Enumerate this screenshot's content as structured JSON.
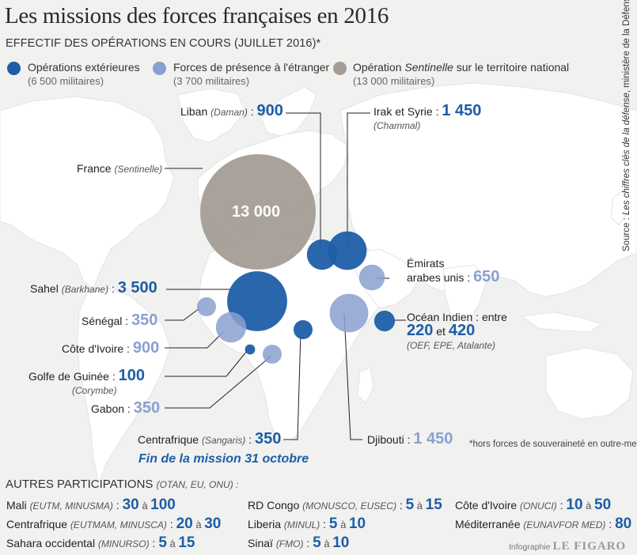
{
  "title": "Les missions des forces françaises en 2016",
  "subtitle": "EFFECTIF DES OPÉRATIONS EN COURS (JUILLET 2016)*",
  "colors": {
    "opex": "#1d5ea6",
    "presence": "#8aa0cf",
    "sentinelle": "#a39d96",
    "land": "#ffffff",
    "sea": "#f1f1f0",
    "leader": "#222222"
  },
  "legend": [
    {
      "label": "Opérations extérieures",
      "sub": "(6 500 militaires)",
      "color": "#1d5ea6"
    },
    {
      "label": "Forces de présence à l'étranger",
      "sub": "(3 700 militaires)",
      "color": "#8aa0cf"
    },
    {
      "label_pre": "Opération ",
      "label_it": "Sentinelle",
      "label_post": " sur le territoire national",
      "sub": "(13 000 militaires)",
      "color": "#a39d96"
    }
  ],
  "circles": [
    {
      "id": "france",
      "category": "sentinelle",
      "value": 13000,
      "value_label": "13 000"
    },
    {
      "id": "sahel",
      "category": "opex",
      "value": 3500
    },
    {
      "id": "irak",
      "category": "opex",
      "value": 1450
    },
    {
      "id": "liban",
      "category": "opex",
      "value": 900
    },
    {
      "id": "centrafrique",
      "category": "opex",
      "value": 350
    },
    {
      "id": "ocean-indien",
      "category": "opex",
      "value": 420
    },
    {
      "id": "guinee",
      "category": "opex",
      "value": 100
    },
    {
      "id": "djibouti",
      "category": "presence",
      "value": 1450
    },
    {
      "id": "cote-ivoire",
      "category": "presence",
      "value": 900
    },
    {
      "id": "emirats",
      "category": "presence",
      "value": 650
    },
    {
      "id": "senegal",
      "category": "presence",
      "value": 350
    },
    {
      "id": "gabon",
      "category": "presence",
      "value": 350
    }
  ],
  "labels": {
    "liban": {
      "name": "Liban",
      "sub": "(Daman)",
      "sep": " : ",
      "value": "900"
    },
    "irak": {
      "name": "Irak et Syrie : ",
      "value": "1 450",
      "sub": "(Chammal)"
    },
    "france": {
      "name": "France",
      "sub": "(Sentinelle)"
    },
    "emirats": {
      "name_1": "Émirats",
      "name_2": "arabes unis : ",
      "value": "650"
    },
    "sahel": {
      "name": "Sahel",
      "sub": "(Barkhane)",
      "sep": " : ",
      "value": "3 500"
    },
    "ocean": {
      "name": "Océan Indien : entre",
      "v1": "220",
      "et": " et ",
      "v2": "420",
      "sub": "(OEF, EPE, Atalante)"
    },
    "senegal": {
      "name": "Sénégal : ",
      "value": "350"
    },
    "cote_ivoire": {
      "name": "Côte d'Ivoire : ",
      "value": "900"
    },
    "guinee": {
      "name": "Golfe de Guinée : ",
      "value": "100",
      "sub": "(Corymbe)"
    },
    "gabon": {
      "name": "Gabon : ",
      "value": "350"
    },
    "centrafrique": {
      "name": "Centrafrique",
      "sub": "(Sangaris)",
      "sep": " : ",
      "value": "350"
    },
    "djibouti": {
      "name": "Djibouti : ",
      "value": "1 450"
    }
  },
  "fin_mission": "Fin de la mission 31 octobre",
  "note": "*hors forces de souveraineté en outre-mer",
  "source": {
    "pre": "Source : ",
    "it": "Les chiffres clés de la défense",
    "post": ", ministère de la Défense"
  },
  "autres": {
    "title": "AUTRES PARTICIPATIONS",
    "title_sub": "(OTAN, EU, ONU) :",
    "items": [
      {
        "name": "Mali",
        "sub": "(EUTM, MINUSMA)",
        "sep": " : ",
        "v1": "30",
        "a": " à ",
        "v2": "100"
      },
      {
        "name": "Centrafrique",
        "sub": "(EUTMAM, MINUSCA)",
        "sep": " : ",
        "v1": "20",
        "a": " à ",
        "v2": "30"
      },
      {
        "name": "Sahara occidental",
        "sub": "(MINURSO)",
        "sep": " : ",
        "v1": "5",
        "a": " à ",
        "v2": "15"
      },
      {
        "name": "RD Congo",
        "sub": "(MONUSCO, EUSEC)",
        "sep": " : ",
        "v1": "5",
        "a": " à ",
        "v2": "15"
      },
      {
        "name": "Liberia",
        "sub": "(MINUL)",
        "sep": " : ",
        "v1": "5",
        "a": " à ",
        "v2": "10"
      },
      {
        "name": "Sinaï",
        "sub": "(FMO)",
        "sep": " : ",
        "v1": "5",
        "a": " à ",
        "v2": "10"
      },
      {
        "name": "Côte d'Ivoire",
        "sub": "(ONUCI)",
        "sep": " : ",
        "v1": "10",
        "a": " à ",
        "v2": "50"
      },
      {
        "name": "Méditerranée",
        "sub": "(EUNAVFOR MED)",
        "sep": " : ",
        "v1": "80",
        "a": "",
        "v2": ""
      }
    ]
  },
  "credit": {
    "pre": "Infographie ",
    "brand": "LE FIGARO"
  }
}
